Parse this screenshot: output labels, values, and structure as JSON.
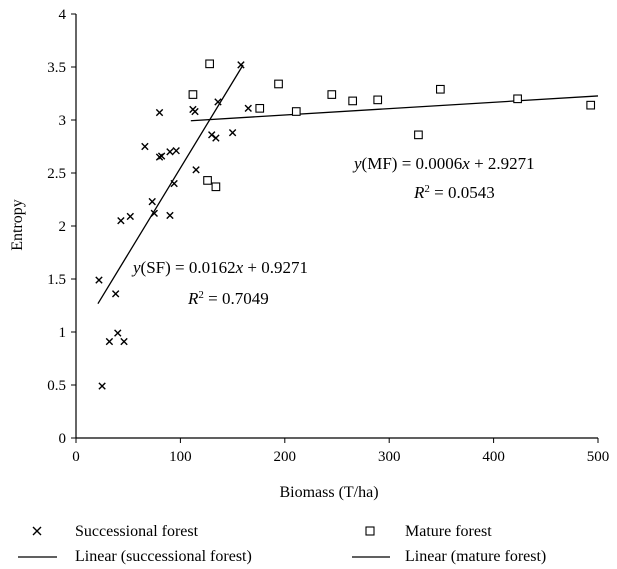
{
  "chart_data": {
    "type": "scatter",
    "xlabel": "Biomass (T/ha)",
    "ylabel": "Entropy",
    "xlim": [
      0,
      500
    ],
    "ylim": [
      0,
      4
    ],
    "x_ticks": [
      0,
      100,
      200,
      300,
      400,
      500
    ],
    "y_ticks": [
      0,
      0.5,
      1,
      1.5,
      2,
      2.5,
      3,
      3.5,
      4
    ],
    "x_tick_labels": [
      "0",
      "100",
      "200",
      "300",
      "400",
      "500"
    ],
    "y_tick_labels": [
      "0",
      "0.5",
      "1",
      "1.5",
      "2",
      "2.5",
      "3",
      "3.5",
      "4"
    ],
    "grid": false,
    "legend_position": "bottom",
    "series": [
      {
        "name": "Successional forest",
        "marker": "x",
        "color": "#000000",
        "points": [
          [
            22,
            1.49
          ],
          [
            25,
            0.49
          ],
          [
            32,
            0.91
          ],
          [
            38,
            1.36
          ],
          [
            40,
            0.99
          ],
          [
            43,
            2.05
          ],
          [
            46,
            0.91
          ],
          [
            52,
            2.09
          ],
          [
            66,
            2.75
          ],
          [
            73,
            2.23
          ],
          [
            75,
            2.12
          ],
          [
            80,
            3.07
          ],
          [
            80,
            2.65
          ],
          [
            82,
            2.66
          ],
          [
            90,
            2.1
          ],
          [
            90,
            2.7
          ],
          [
            94,
            2.4
          ],
          [
            96,
            2.71
          ],
          [
            112,
            3.1
          ],
          [
            114,
            3.08
          ],
          [
            115,
            2.53
          ],
          [
            130,
            2.86
          ],
          [
            134,
            2.83
          ],
          [
            136,
            3.17
          ],
          [
            150,
            2.88
          ],
          [
            158,
            3.52
          ],
          [
            165,
            3.11
          ]
        ]
      },
      {
        "name": "Mature forest",
        "marker": "square",
        "color": "#000000",
        "points": [
          [
            112,
            3.24
          ],
          [
            126,
            2.43
          ],
          [
            128,
            3.53
          ],
          [
            134,
            2.37
          ],
          [
            176,
            3.11
          ],
          [
            194,
            3.34
          ],
          [
            211,
            3.08
          ],
          [
            245,
            3.24
          ],
          [
            265,
            3.18
          ],
          [
            289,
            3.19
          ],
          [
            328,
            2.86
          ],
          [
            349,
            3.29
          ],
          [
            423,
            3.2
          ],
          [
            493,
            3.14
          ]
        ]
      }
    ],
    "trendlines": [
      {
        "name": "Linear (successional forest)",
        "slope": 0.0162,
        "intercept": 0.9271,
        "x_range": [
          21,
          160
        ],
        "equation_label": "y(SF) = 0.0162x + 0.9271",
        "r2_label": "R2 = 0.7049"
      },
      {
        "name": "Linear (mature forest)",
        "slope": 0.0006,
        "intercept": 2.9271,
        "x_range": [
          110,
          500
        ],
        "equation_label": "y(MF) = 0.0006x + 2.9271",
        "r2_label": "R2 = 0.0543"
      }
    ]
  }
}
